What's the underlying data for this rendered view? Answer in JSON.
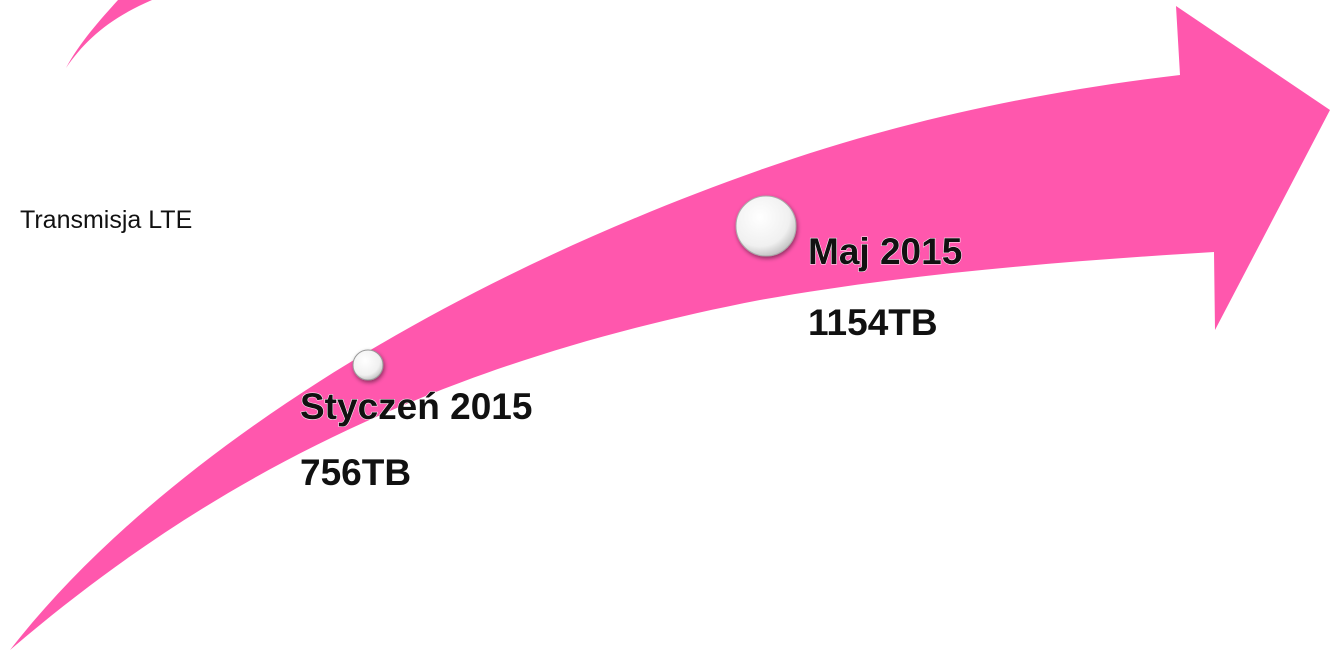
{
  "title": "Transmisja LTE",
  "milestones": [
    {
      "date": "Styczeń 2015",
      "value": "756TB"
    },
    {
      "date": "Maj 2015",
      "value": "1154TB"
    }
  ]
}
